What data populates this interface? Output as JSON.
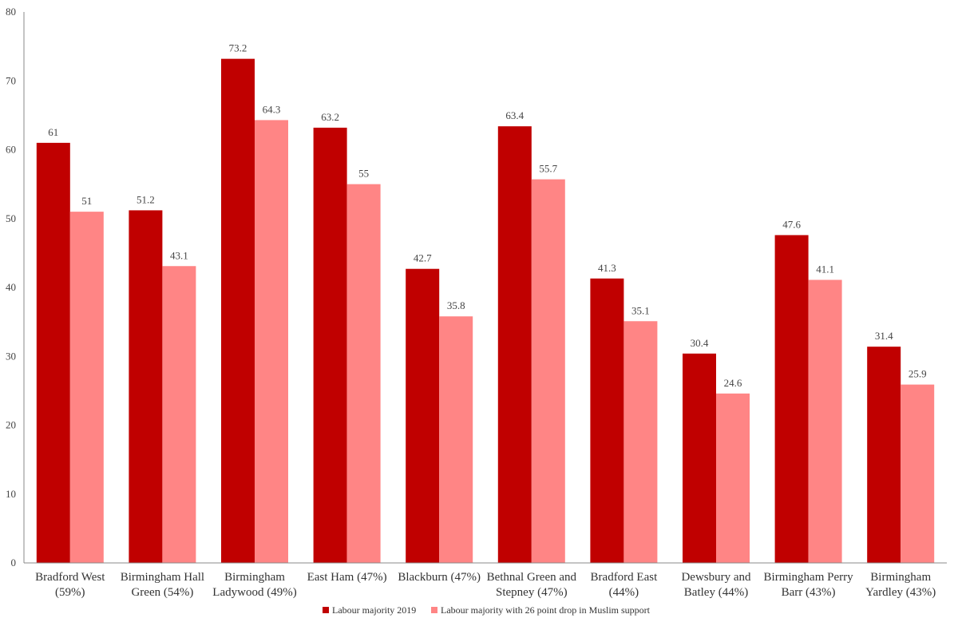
{
  "chart_data": {
    "type": "bar",
    "title": "",
    "xlabel": "",
    "ylabel": "",
    "ylim": [
      0,
      80
    ],
    "yticks": [
      0,
      10,
      20,
      30,
      40,
      50,
      60,
      70,
      80
    ],
    "grid": false,
    "legend_position": "bottom",
    "categories": [
      [
        "Bradford West",
        "(59%)"
      ],
      [
        "Birmingham Hall",
        "Green (54%)"
      ],
      [
        "Birmingham",
        "Ladywood (49%)"
      ],
      [
        "East Ham (47%)"
      ],
      [
        "Blackburn (47%)"
      ],
      [
        "Bethnal Green and",
        "Stepney (47%)"
      ],
      [
        "Bradford East",
        "(44%)"
      ],
      [
        "Dewsbury and",
        "Batley (44%)"
      ],
      [
        "Birmingham Perry",
        "Barr (43%)"
      ],
      [
        "Birmingham",
        "Yardley (43%)"
      ]
    ],
    "series": [
      {
        "name": "Labour majority 2019",
        "color": "#c00000",
        "values": [
          61,
          51.2,
          73.2,
          63.2,
          42.7,
          63.4,
          41.3,
          30.4,
          47.6,
          31.4
        ],
        "labels": [
          "61",
          "51.2",
          "73.2",
          "63.2",
          "42.7",
          "63.4",
          "41.3",
          "30.4",
          "47.6",
          "31.4"
        ]
      },
      {
        "name": "Labour majority with 26 point drop in Muslim support",
        "color": "#ff8585",
        "values": [
          51,
          43.1,
          64.3,
          55,
          35.8,
          55.7,
          35.1,
          24.6,
          41.1,
          25.9
        ],
        "labels": [
          "51",
          "43.1",
          "64.3",
          "55",
          "35.8",
          "55.7",
          "35.1",
          "24.6",
          "41.1",
          "25.9"
        ]
      }
    ]
  }
}
